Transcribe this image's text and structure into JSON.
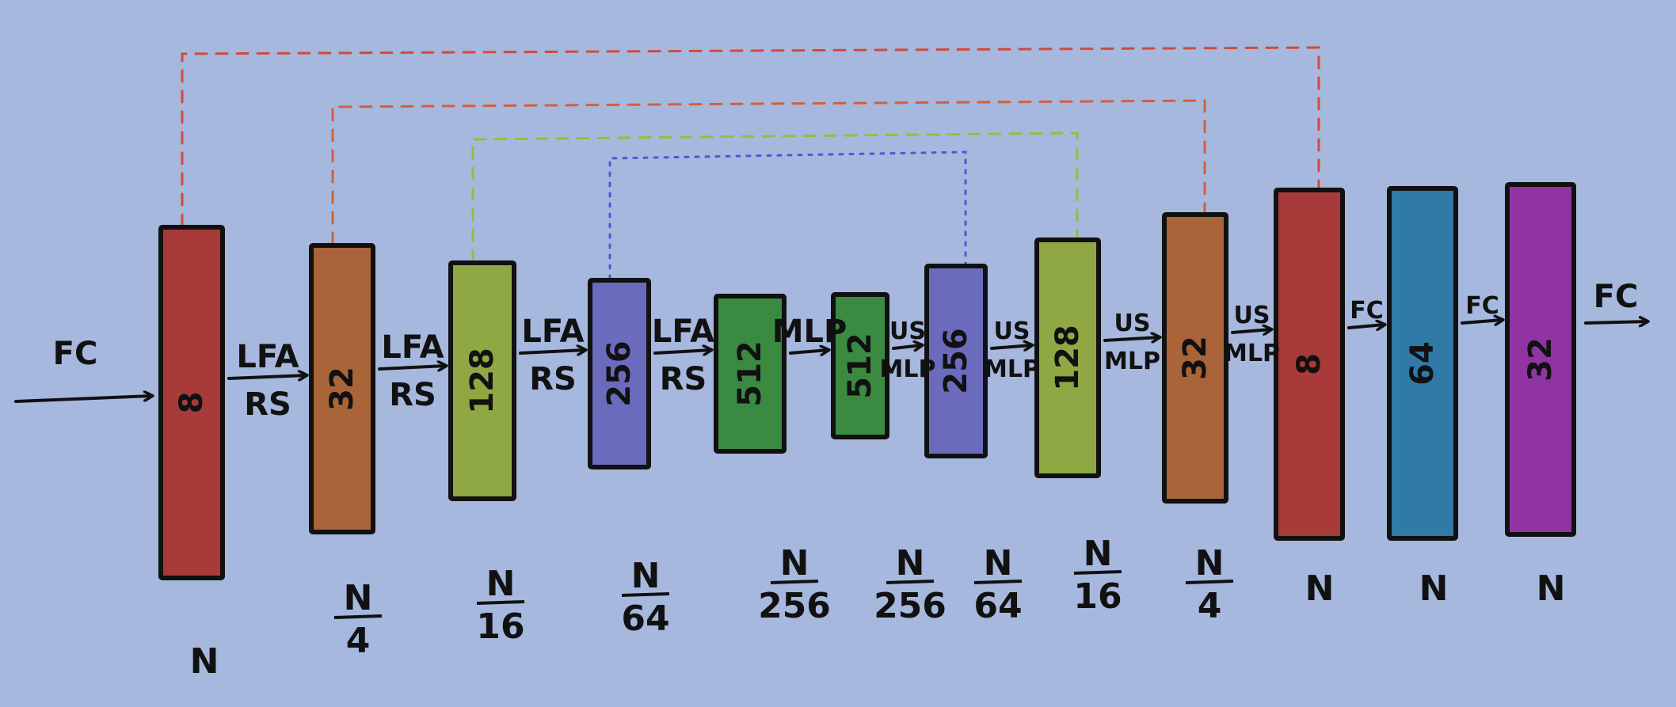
{
  "diagram": {
    "input_arrow_label": "FC",
    "blocks": [
      {
        "label": "8",
        "color": "#a83a3a",
        "size_num": "N",
        "size_den": ""
      },
      {
        "label": "32",
        "color": "#a9643a",
        "size_num": "N",
        "size_den": "4"
      },
      {
        "label": "128",
        "color": "#8fa844",
        "size_num": "N",
        "size_den": "16"
      },
      {
        "label": "256",
        "color": "#6a6bbd",
        "size_num": "N",
        "size_den": "64"
      },
      {
        "label": "512",
        "color": "#3b8a42",
        "size_num": "N",
        "size_den": "256"
      },
      {
        "label": "512",
        "color": "#3b8a42",
        "size_num": "N",
        "size_den": "256"
      },
      {
        "label": "256",
        "color": "#6a6bbd",
        "size_num": "N",
        "size_den": "64"
      },
      {
        "label": "128",
        "color": "#8fa844",
        "size_num": "N",
        "size_den": "16"
      },
      {
        "label": "32",
        "color": "#a9643a",
        "size_num": "N",
        "size_den": "4"
      },
      {
        "label": "8",
        "color": "#a83a3a",
        "size_num": "N",
        "size_den": ""
      },
      {
        "label": "64",
        "color": "#2f7aa6",
        "size_num": "N",
        "size_den": ""
      },
      {
        "label": "32",
        "color": "#9134a3",
        "size_num": "N",
        "size_den": ""
      }
    ],
    "arrows": [
      {
        "top": "LFA",
        "bottom": "RS"
      },
      {
        "top": "LFA",
        "bottom": "RS"
      },
      {
        "top": "LFA",
        "bottom": "RS"
      },
      {
        "top": "LFA",
        "bottom": "RS"
      },
      {
        "top": "MLP",
        "bottom": ""
      },
      {
        "top": "US",
        "bottom": "MLP"
      },
      {
        "top": "US",
        "bottom": "MLP"
      },
      {
        "top": "US",
        "bottom": "MLP"
      },
      {
        "top": "US",
        "bottom": "MLP"
      },
      {
        "top": "FC",
        "bottom": ""
      },
      {
        "top": "FC",
        "bottom": ""
      }
    ],
    "output_arrow_label": "FC",
    "skip_connections": [
      {
        "from": 0,
        "to": 9,
        "color": "#d24a3a"
      },
      {
        "from": 1,
        "to": 8,
        "color": "#d2603a"
      },
      {
        "from": 2,
        "to": 7,
        "color": "#8ec23a"
      },
      {
        "from": 3,
        "to": 6,
        "color": "#4a5ad8"
      }
    ]
  }
}
